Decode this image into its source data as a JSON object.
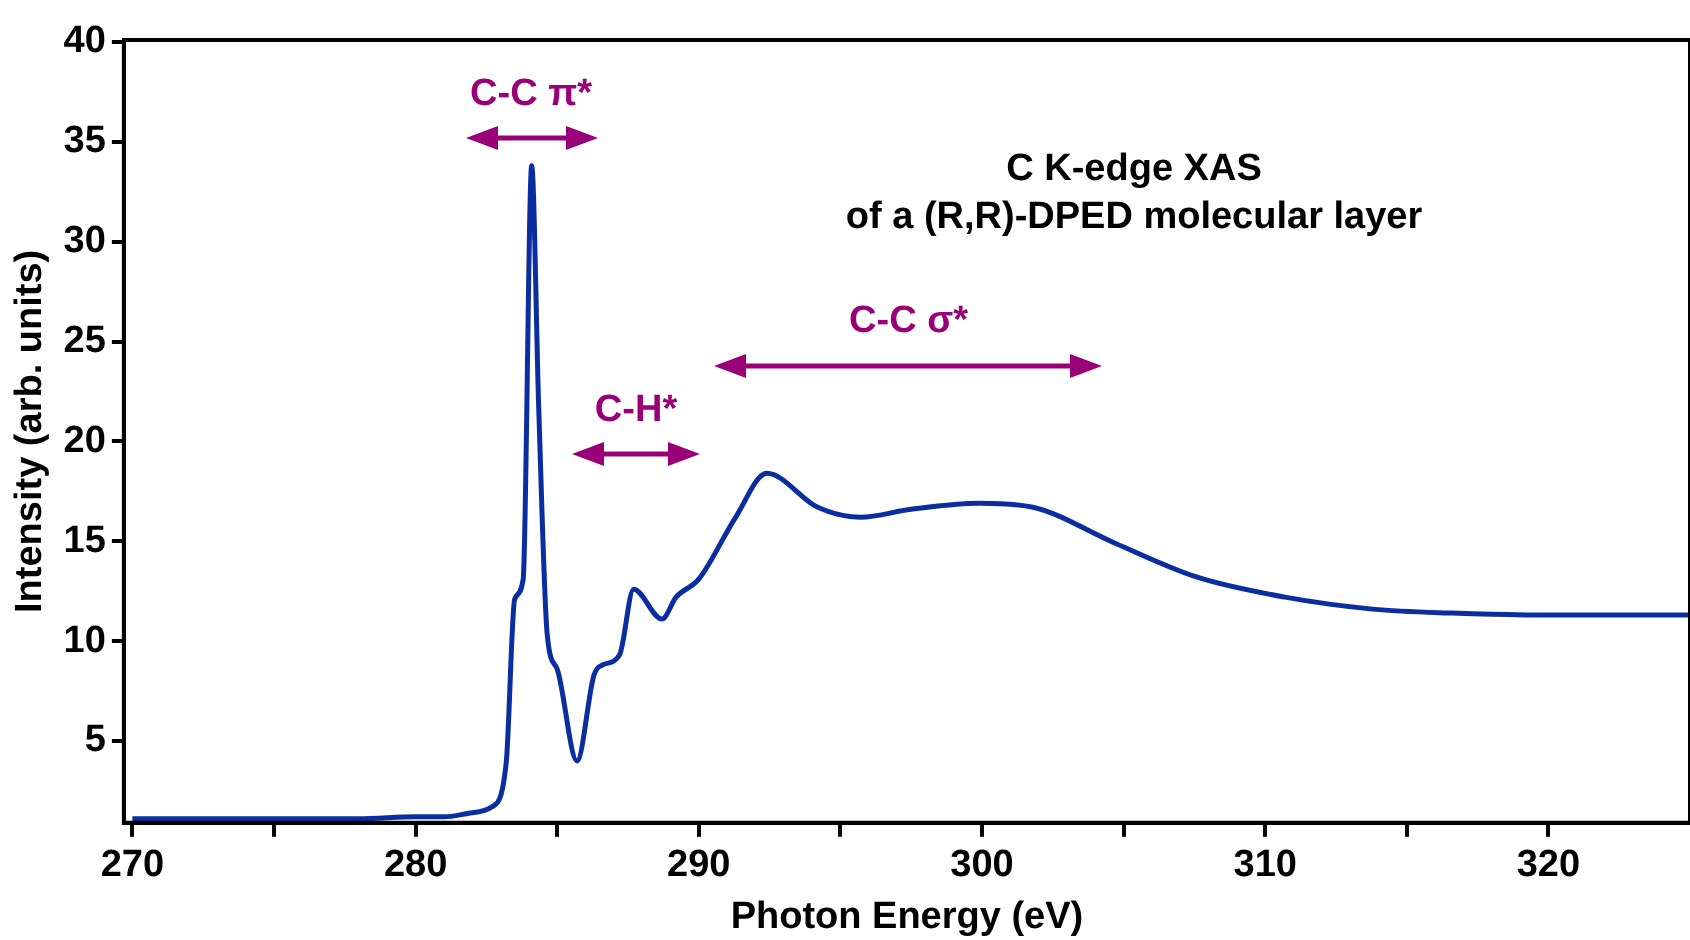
{
  "chart_data": {
    "type": "line",
    "title": "C K-edge XAS",
    "subtitle": "of a (R,R)-DPED molecular layer",
    "xlabel": "Photon Energy (eV)",
    "ylabel": "Intensity (arb. units)",
    "x": [
      270,
      272,
      274,
      276,
      278,
      280,
      281,
      282,
      282.7,
      283.2,
      283.5,
      283.8,
      284.1,
      284.35,
      284.65,
      285.0,
      285.7,
      286.3,
      286.6,
      287.2,
      287.7,
      288.7,
      289.2,
      290.0,
      291.3,
      292.4,
      294.2,
      295.7,
      297.5,
      299.9,
      301.8,
      304.7,
      307.6,
      310.7,
      313.8,
      316.6,
      320,
      325
    ],
    "series": [
      {
        "color": "#0a2ea0",
        "values": [
          1.1,
          1.1,
          1.1,
          1.1,
          1.1,
          1.2,
          1.2,
          1.4,
          1.7,
          3.9,
          12.1,
          13.1,
          33.8,
          21.6,
          10.3,
          8.6,
          4.0,
          8.3,
          8.8,
          9.3,
          12.6,
          11.1,
          12.2,
          13.1,
          16.2,
          18.4,
          16.7,
          16.2,
          16.6,
          16.9,
          16.7,
          14.9,
          13.2,
          12.2,
          11.6,
          11.4,
          11.3,
          11.3
        ]
      }
    ],
    "xlim": [
      269.7,
      325
    ],
    "ylim": [
      0.9,
      40.1
    ],
    "xticks": [
      270,
      {
        "value": 275,
        "label": null
      },
      280,
      {
        "value": 285,
        "label": null
      },
      290,
      {
        "value": 295,
        "label": null
      },
      300,
      {
        "value": 305,
        "label": null
      },
      310,
      {
        "value": 315,
        "label": null
      },
      320
    ],
    "yticks": [
      5,
      10,
      15,
      20,
      25,
      30,
      35,
      40
    ],
    "annotations": [
      "C-C π*",
      "C-H*",
      "C-C σ*"
    ],
    "legend": false,
    "grid": false,
    "marker": "none",
    "line_style": "solid"
  }
}
